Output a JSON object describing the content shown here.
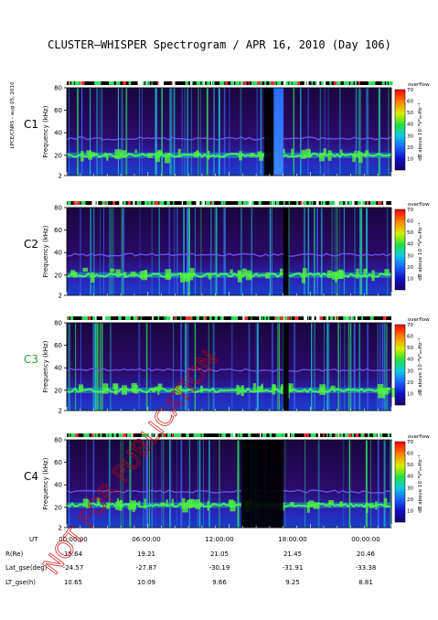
{
  "chart_data": {
    "type": "heatmap",
    "title": "CLUSTER–WHISPER Spectrogram / APR 16, 2010 (Day 106)",
    "side_note": "LPCE/CNRS - aug 05, 2010",
    "x_axis": {
      "unit": "UT",
      "start": "00:00:00",
      "end": "24:00:00",
      "ticks": [
        "00:00:00",
        "06:00:00",
        "12:00:00",
        "18:00:00",
        "00:00:00"
      ]
    },
    "y_axis": {
      "label": "Frequency (kHz)",
      "ylim": [
        2,
        80
      ],
      "ticks": [
        2,
        20,
        40,
        60,
        80
      ]
    },
    "colorbar": {
      "top_label": "overflow",
      "label": "dB above 10⁻⁸V²ₘₙHz⁻¹",
      "range": [
        0,
        70
      ],
      "ticks": [
        10,
        20,
        30,
        40,
        50,
        60,
        70
      ]
    },
    "panels": [
      {
        "name": "C1",
        "label_color": "#000000",
        "plasma_line_khz": 20,
        "upper_line_khz": 35,
        "gap_start_h": 14.6,
        "gap_end_h": 15.3,
        "burst_start_h": 15.3,
        "burst_end_h": 16.0
      },
      {
        "name": "C2",
        "label_color": "#000000",
        "plasma_line_khz": 20,
        "upper_line_khz": 38,
        "gap_start_h": 16.0,
        "gap_end_h": 16.4,
        "burst_start_h": null,
        "burst_end_h": null
      },
      {
        "name": "C3",
        "label_color": "#2e9e40",
        "plasma_line_khz": 20,
        "upper_line_khz": 38,
        "gap_start_h": 16.0,
        "gap_end_h": 16.4,
        "burst_start_h": null,
        "burst_end_h": null
      },
      {
        "name": "C4",
        "label_color": "#000000",
        "plasma_line_khz": 22,
        "upper_line_khz": 34,
        "gap_start_h": 12.9,
        "gap_end_h": 16.0,
        "burst_start_h": null,
        "burst_end_h": null
      }
    ],
    "orbit_table": {
      "rows": [
        {
          "label": "UT",
          "values": [
            "00:00:00",
            "06:00:00",
            "12:00:00",
            "18:00:00",
            "00:00:00"
          ]
        },
        {
          "label": "R(Re)",
          "values": [
            "15.64",
            "19.21",
            "21.05",
            "21.45",
            "20.46"
          ]
        },
        {
          "label": "Lat_gse(deg)",
          "values": [
            "-24.57",
            "-27.87",
            "-30.19",
            "-31.91",
            "-33.38"
          ]
        },
        {
          "label": "LT_gse(h)",
          "values": [
            "10.65",
            "10.09",
            "9.66",
            "9.25",
            "8.81"
          ]
        }
      ]
    },
    "watermark": "NOT FOR PUBLICATION"
  }
}
